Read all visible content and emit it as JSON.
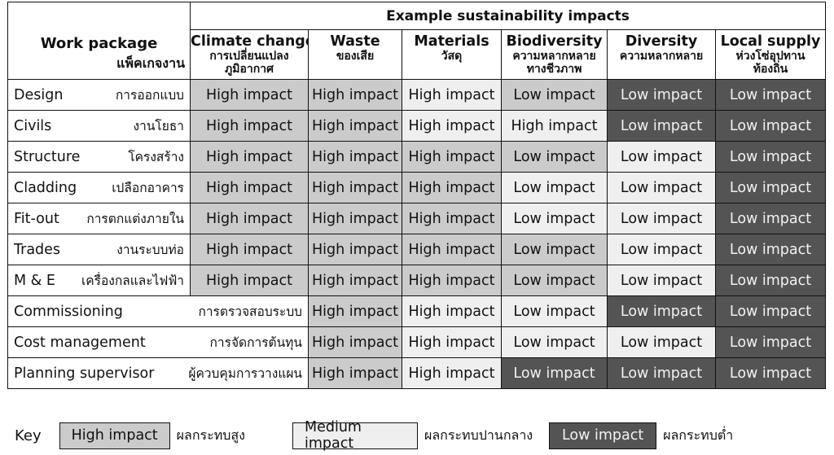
{
  "header": {
    "group_title": "Example sustainability impacts",
    "work_package_en": "Work package",
    "work_package_th": "แพ็คเกจงาน"
  },
  "columns": [
    {
      "en": "Climate change",
      "th": "การเปลี่ยนแปลง\nภูมิอากาศ"
    },
    {
      "en": "Waste",
      "th": "ของเสีย"
    },
    {
      "en": "Materials",
      "th": "วัสดุ"
    },
    {
      "en": "Biodiversity",
      "th": "ความหลากหลาย\nทางชีวภาพ"
    },
    {
      "en": "Diversity",
      "th": "ความหลากหลาย"
    },
    {
      "en": "Local supply",
      "th": "ห่วงโซ่อุปทาน\nท้องถิ่น"
    }
  ],
  "rows": [
    {
      "en": "Design",
      "th": "การออกแบบ",
      "cells": [
        "High impact",
        "High impact",
        "High impact",
        "Low impact",
        "Low impact",
        "Low impact"
      ],
      "levels": [
        "high",
        "high",
        "medium",
        "high",
        "low",
        "low"
      ]
    },
    {
      "en": "Civils",
      "th": "งานโยธา",
      "cells": [
        "High impact",
        "High impact",
        "High impact",
        "High impact",
        "Low impact",
        "Low impact"
      ],
      "levels": [
        "high",
        "high",
        "medium",
        "medium",
        "low",
        "low"
      ]
    },
    {
      "en": "Structure",
      "th": "โครงสร้าง",
      "cells": [
        "High impact",
        "High impact",
        "High impact",
        "Low impact",
        "Low impact",
        "Low impact"
      ],
      "levels": [
        "high",
        "high",
        "high",
        "high",
        "medium",
        "low"
      ]
    },
    {
      "en": "Cladding",
      "th": "เปลือกอาคาร",
      "cells": [
        "High impact",
        "High impact",
        "High impact",
        "Low impact",
        "Low impact",
        "Low impact"
      ],
      "levels": [
        "high",
        "high",
        "high",
        "medium",
        "medium",
        "low"
      ]
    },
    {
      "en": "Fit-out",
      "th": "การตกแต่งภายใน",
      "cells": [
        "High impact",
        "High impact",
        "High impact",
        "Low impact",
        "Low impact",
        "Low impact"
      ],
      "levels": [
        "high",
        "high",
        "high",
        "medium",
        "medium",
        "low"
      ]
    },
    {
      "en": "Trades",
      "th": "งานระบบท่อ",
      "cells": [
        "High impact",
        "High impact",
        "High impact",
        "Low impact",
        "Low impact",
        "Low impact"
      ],
      "levels": [
        "high",
        "high",
        "high",
        "high",
        "medium",
        "low"
      ]
    },
    {
      "en": "M & E",
      "th": "เครื่องกลและไฟฟ้า",
      "cells": [
        "High impact",
        "High impact",
        "High impact",
        "Low impact",
        "Low impact",
        "Low impact"
      ],
      "levels": [
        "high",
        "high",
        "high",
        "high",
        "medium",
        "low"
      ]
    },
    {
      "en": "Commissioning",
      "th": "การตรวจสอบระบบ",
      "cells": [
        "High impact",
        "High impact",
        "Low impact",
        "Low impact",
        "Low impact"
      ],
      "levels": [
        "high",
        "medium",
        "medium",
        "low",
        "low"
      ]
    },
    {
      "en": "Cost management",
      "th": "การจัดการต้นทุน",
      "cells": [
        "High impact",
        "High impact",
        "Low impact",
        "Low impact",
        "Low impact"
      ],
      "levels": [
        "high",
        "medium",
        "medium",
        "medium",
        "low"
      ]
    },
    {
      "en": "Planning supervisor",
      "th": "ผู้ควบคุมการวางแผน",
      "cells": [
        "High impact",
        "High impact",
        "Low impact",
        "Low impact",
        "Low impact"
      ],
      "levels": [
        "high",
        "medium",
        "low",
        "low",
        "low"
      ]
    }
  ],
  "key": {
    "title": "Key",
    "high_label": "High impact",
    "high_th": "ผลกระทบสูง",
    "medium_label": "Medium impact",
    "medium_th": "ผลกระทบปานกลาง",
    "low_label": "Low impact",
    "low_th": "ผลกระทบต่ำ"
  },
  "colors": {
    "high": "#cbcbcb",
    "medium": "#efefef",
    "low": "#545454"
  }
}
